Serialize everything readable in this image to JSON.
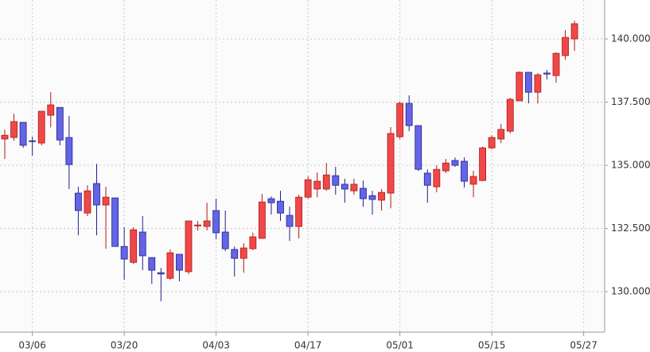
{
  "chart_data": {
    "type": "candlestick",
    "categories": [
      null,
      null,
      null,
      "03/06",
      null,
      null,
      null,
      null,
      null,
      null,
      null,
      null,
      null,
      "03/20",
      null,
      null,
      null,
      null,
      null,
      null,
      null,
      null,
      null,
      "04/03",
      null,
      null,
      null,
      null,
      null,
      null,
      null,
      null,
      null,
      "04/17",
      null,
      null,
      null,
      null,
      null,
      null,
      null,
      null,
      null,
      "05/01",
      null,
      null,
      null,
      null,
      null,
      null,
      null,
      null,
      null,
      "05/15",
      null,
      null,
      null,
      null,
      null,
      null,
      null,
      null,
      null,
      "05/27"
    ],
    "open": [
      136.04,
      136.1,
      136.7,
      135.97,
      135.88,
      136.98,
      137.29,
      136.1,
      133.9,
      133.11,
      134.28,
      133.43,
      133.71,
      131.79,
      131.16,
      132.36,
      131.35,
      130.75,
      130.53,
      131.48,
      130.79,
      132.6,
      132.58,
      133.21,
      132.36,
      131.67,
      131.32,
      131.7,
      132.11,
      133.68,
      133.58,
      133.02,
      132.58,
      133.74,
      134.06,
      134.06,
      134.59,
      134.25,
      133.99,
      134.09,
      133.8,
      133.62,
      133.9,
      136.13,
      137.45,
      136.57,
      134.69,
      134.15,
      134.78,
      135.19,
      135.16,
      134.25,
      134.4,
      135.69,
      136.04,
      136.35,
      137.55,
      138.68,
      137.89,
      138.65,
      138.55,
      139.34,
      140.0,
      null
    ],
    "high": [
      136.41,
      137.04,
      136.7,
      136.13,
      137.14,
      137.89,
      137.29,
      136.95,
      134.15,
      134.21,
      135.06,
      134.15,
      133.71,
      132.55,
      132.55,
      132.99,
      131.35,
      130.94,
      131.67,
      131.48,
      132.8,
      132.8,
      133.52,
      133.68,
      133.21,
      131.79,
      131.92,
      132.33,
      133.87,
      133.77,
      133.99,
      133.36,
      133.84,
      134.56,
      134.72,
      135.09,
      134.94,
      134.47,
      134.47,
      134.4,
      133.99,
      134.06,
      136.51,
      137.52,
      137.77,
      136.57,
      134.84,
      135.0,
      135.25,
      135.31,
      135.31,
      134.78,
      135.75,
      136.19,
      136.64,
      137.67,
      138.71,
      138.68,
      138.65,
      138.77,
      139.47,
      140.35,
      140.72,
      null
    ],
    "low": [
      135.25,
      135.97,
      135.69,
      135.38,
      135.79,
      136.5,
      135.79,
      134.06,
      132.23,
      132.99,
      132.23,
      131.7,
      131.79,
      130.47,
      131.1,
      130.85,
      130.31,
      129.62,
      130.47,
      130.41,
      130.69,
      132.42,
      132.42,
      132.08,
      131.6,
      130.6,
      130.75,
      131.64,
      132.11,
      133.05,
      132.8,
      132.01,
      132.11,
      133.68,
      133.74,
      133.99,
      133.84,
      133.52,
      133.84,
      133.36,
      133.05,
      133.21,
      133.3,
      136.04,
      136.35,
      134.78,
      133.52,
      133.93,
      134.69,
      134.94,
      134.12,
      133.74,
      134.37,
      135.63,
      135.88,
      136.26,
      137.55,
      137.45,
      137.45,
      138.4,
      138.27,
      139.18,
      139.53,
      null
    ],
    "close": [
      136.19,
      136.73,
      135.79,
      135.94,
      137.14,
      137.39,
      136.0,
      135.03,
      133.21,
      133.99,
      133.43,
      133.74,
      131.79,
      131.29,
      132.45,
      131.42,
      130.85,
      130.7,
      131.54,
      130.85,
      132.8,
      132.64,
      132.8,
      132.33,
      131.7,
      131.32,
      131.73,
      132.17,
      133.55,
      133.52,
      133.11,
      132.58,
      133.74,
      134.43,
      134.37,
      134.62,
      134.21,
      134.06,
      134.25,
      133.68,
      133.65,
      133.93,
      136.26,
      137.45,
      136.57,
      134.84,
      134.21,
      134.84,
      135.09,
      135.0,
      134.37,
      134.56,
      135.69,
      136.1,
      136.42,
      137.61,
      138.68,
      137.89,
      138.58,
      138.61,
      139.43,
      140.06,
      140.6,
      null
    ],
    "up_color": "#f04848",
    "down_color": "#6464e6",
    "up_edge": "#b01818",
    "down_edge": "#20208c",
    "ylim": [
      128.4,
      141.54
    ],
    "yticks": [
      {
        "value": 130,
        "label": "130.000"
      },
      {
        "value": 132.5,
        "label": "132.500"
      },
      {
        "value": 135,
        "label": "135.000"
      },
      {
        "value": 137.5,
        "label": "137.500"
      },
      {
        "value": 140,
        "label": "140.000"
      }
    ],
    "grid": true
  }
}
